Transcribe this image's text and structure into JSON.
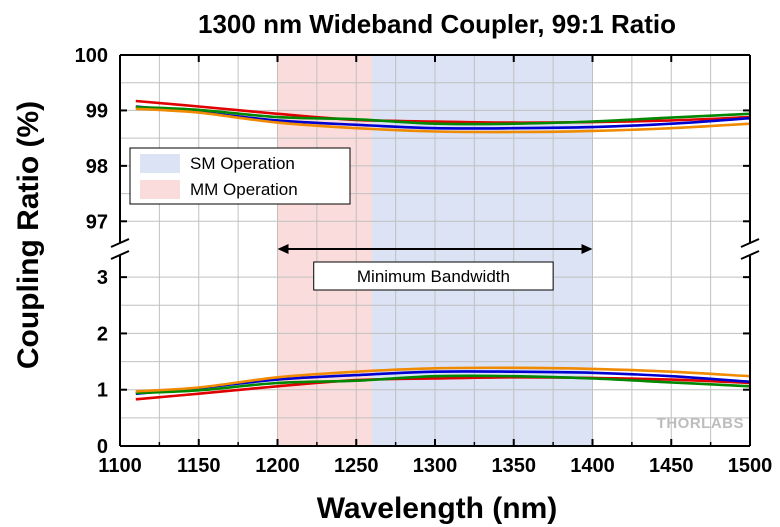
{
  "chart_data": {
    "type": "line",
    "title": "1300 nm Wideband Coupler, 99:1 Ratio",
    "xlabel": "Wavelength (nm)",
    "ylabel": "Coupling Ratio (%)",
    "x_ticks": [
      1100,
      1150,
      1200,
      1250,
      1300,
      1350,
      1400,
      1450,
      1500
    ],
    "xlim": [
      1100,
      1500
    ],
    "y_axis_break": true,
    "upper_panel": {
      "ylim": [
        96.5,
        100
      ],
      "y_ticks": [
        97,
        98,
        99,
        100
      ]
    },
    "lower_panel": {
      "ylim": [
        0,
        3.5
      ],
      "y_ticks": [
        0,
        1,
        2,
        3
      ]
    },
    "grid": true,
    "regions": [
      {
        "label": "SM Operation",
        "x_start": 1260,
        "x_end": 1400,
        "color": "#dbe3f5"
      },
      {
        "label": "MM Operation",
        "x_start": 1200,
        "x_end": 1260,
        "color": "#fbdcdc"
      }
    ],
    "legend_position": "upper-left",
    "annotation": {
      "label": "Minimum Bandwidth",
      "x_start": 1200,
      "x_end": 1400
    },
    "x": [
      1110,
      1150,
      1200,
      1250,
      1300,
      1350,
      1400,
      1450,
      1500
    ],
    "series": [
      {
        "color": "#e00000",
        "upper": [
          99.17,
          99.07,
          98.94,
          98.83,
          98.8,
          98.78,
          98.79,
          98.82,
          98.88
        ],
        "lower": [
          0.83,
          0.93,
          1.06,
          1.17,
          1.2,
          1.22,
          1.21,
          1.18,
          1.12
        ]
      },
      {
        "color": "#0000d0",
        "upper": [
          99.07,
          98.97,
          98.82,
          98.74,
          98.68,
          98.68,
          98.7,
          98.76,
          98.86
        ],
        "lower": [
          0.93,
          1.03,
          1.18,
          1.26,
          1.32,
          1.32,
          1.3,
          1.24,
          1.14
        ]
      },
      {
        "color": "#008800",
        "upper": [
          99.06,
          99.01,
          98.88,
          98.84,
          98.76,
          98.76,
          98.8,
          98.87,
          98.94
        ],
        "lower": [
          0.94,
          0.99,
          1.12,
          1.16,
          1.24,
          1.24,
          1.2,
          1.13,
          1.06
        ]
      },
      {
        "color": "#f08a00",
        "upper": [
          99.03,
          98.96,
          98.78,
          98.68,
          98.62,
          98.61,
          98.63,
          98.68,
          98.76
        ],
        "lower": [
          0.97,
          1.04,
          1.22,
          1.32,
          1.38,
          1.39,
          1.37,
          1.32,
          1.24
        ]
      }
    ]
  },
  "logo": {
    "text": "THORLABS"
  }
}
